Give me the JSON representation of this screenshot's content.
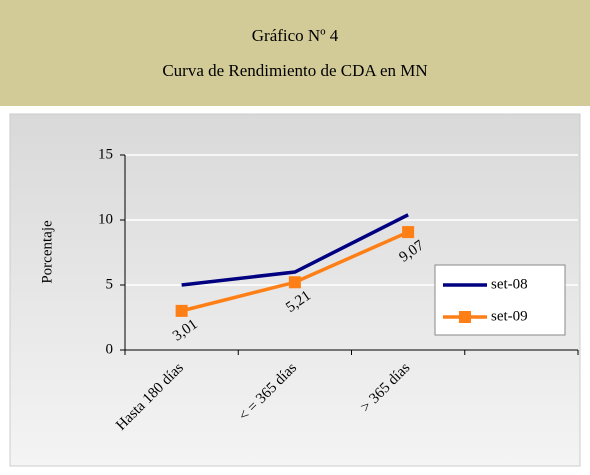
{
  "header": {
    "line1": "Gráfico Nº 4",
    "line2": "Curva de Rendimiento de CDA en MN"
  },
  "chart_data": {
    "type": "line",
    "y_label": "Porcentaje",
    "categories": [
      "Hasta 180 días",
      "< = 365 días",
      "> 365 días",
      null
    ],
    "series": [
      {
        "name": "set-08",
        "color": "#000080",
        "marker": false,
        "values": [
          5.0,
          6.0,
          10.4,
          null
        ]
      },
      {
        "name": "set-09",
        "color": "#ff7f17",
        "marker": true,
        "values": [
          3.01,
          5.21,
          9.07,
          null
        ],
        "value_labels": [
          "3,01",
          "5,21",
          "9,07",
          null
        ]
      }
    ],
    "ylim": [
      0,
      15
    ],
    "yticks": [
      0,
      5,
      10,
      15
    ],
    "grid": true,
    "legend": "right"
  }
}
